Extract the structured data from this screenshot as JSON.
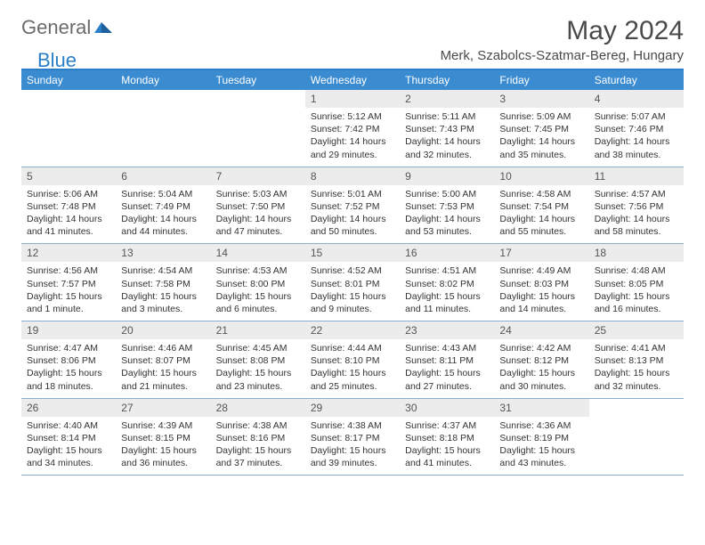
{
  "logo": {
    "text1": "General",
    "text2": "Blue"
  },
  "title": "May 2024",
  "location": "Merk, Szabolcs-Szatmar-Bereg, Hungary",
  "colors": {
    "header_bar": "#3a8bd0",
    "border_top": "#2a7fc9",
    "week_border": "#8aaed0",
    "daynum_bg": "#ececec",
    "text": "#333333",
    "title_text": "#4a4a4a"
  },
  "day_names": [
    "Sunday",
    "Monday",
    "Tuesday",
    "Wednesday",
    "Thursday",
    "Friday",
    "Saturday"
  ],
  "weeks": [
    [
      null,
      null,
      null,
      {
        "n": "1",
        "sunrise": "5:12 AM",
        "sunset": "7:42 PM",
        "daylight": "14 hours and 29 minutes."
      },
      {
        "n": "2",
        "sunrise": "5:11 AM",
        "sunset": "7:43 PM",
        "daylight": "14 hours and 32 minutes."
      },
      {
        "n": "3",
        "sunrise": "5:09 AM",
        "sunset": "7:45 PM",
        "daylight": "14 hours and 35 minutes."
      },
      {
        "n": "4",
        "sunrise": "5:07 AM",
        "sunset": "7:46 PM",
        "daylight": "14 hours and 38 minutes."
      }
    ],
    [
      {
        "n": "5",
        "sunrise": "5:06 AM",
        "sunset": "7:48 PM",
        "daylight": "14 hours and 41 minutes."
      },
      {
        "n": "6",
        "sunrise": "5:04 AM",
        "sunset": "7:49 PM",
        "daylight": "14 hours and 44 minutes."
      },
      {
        "n": "7",
        "sunrise": "5:03 AM",
        "sunset": "7:50 PM",
        "daylight": "14 hours and 47 minutes."
      },
      {
        "n": "8",
        "sunrise": "5:01 AM",
        "sunset": "7:52 PM",
        "daylight": "14 hours and 50 minutes."
      },
      {
        "n": "9",
        "sunrise": "5:00 AM",
        "sunset": "7:53 PM",
        "daylight": "14 hours and 53 minutes."
      },
      {
        "n": "10",
        "sunrise": "4:58 AM",
        "sunset": "7:54 PM",
        "daylight": "14 hours and 55 minutes."
      },
      {
        "n": "11",
        "sunrise": "4:57 AM",
        "sunset": "7:56 PM",
        "daylight": "14 hours and 58 minutes."
      }
    ],
    [
      {
        "n": "12",
        "sunrise": "4:56 AM",
        "sunset": "7:57 PM",
        "daylight": "15 hours and 1 minute."
      },
      {
        "n": "13",
        "sunrise": "4:54 AM",
        "sunset": "7:58 PM",
        "daylight": "15 hours and 3 minutes."
      },
      {
        "n": "14",
        "sunrise": "4:53 AM",
        "sunset": "8:00 PM",
        "daylight": "15 hours and 6 minutes."
      },
      {
        "n": "15",
        "sunrise": "4:52 AM",
        "sunset": "8:01 PM",
        "daylight": "15 hours and 9 minutes."
      },
      {
        "n": "16",
        "sunrise": "4:51 AM",
        "sunset": "8:02 PM",
        "daylight": "15 hours and 11 minutes."
      },
      {
        "n": "17",
        "sunrise": "4:49 AM",
        "sunset": "8:03 PM",
        "daylight": "15 hours and 14 minutes."
      },
      {
        "n": "18",
        "sunrise": "4:48 AM",
        "sunset": "8:05 PM",
        "daylight": "15 hours and 16 minutes."
      }
    ],
    [
      {
        "n": "19",
        "sunrise": "4:47 AM",
        "sunset": "8:06 PM",
        "daylight": "15 hours and 18 minutes."
      },
      {
        "n": "20",
        "sunrise": "4:46 AM",
        "sunset": "8:07 PM",
        "daylight": "15 hours and 21 minutes."
      },
      {
        "n": "21",
        "sunrise": "4:45 AM",
        "sunset": "8:08 PM",
        "daylight": "15 hours and 23 minutes."
      },
      {
        "n": "22",
        "sunrise": "4:44 AM",
        "sunset": "8:10 PM",
        "daylight": "15 hours and 25 minutes."
      },
      {
        "n": "23",
        "sunrise": "4:43 AM",
        "sunset": "8:11 PM",
        "daylight": "15 hours and 27 minutes."
      },
      {
        "n": "24",
        "sunrise": "4:42 AM",
        "sunset": "8:12 PM",
        "daylight": "15 hours and 30 minutes."
      },
      {
        "n": "25",
        "sunrise": "4:41 AM",
        "sunset": "8:13 PM",
        "daylight": "15 hours and 32 minutes."
      }
    ],
    [
      {
        "n": "26",
        "sunrise": "4:40 AM",
        "sunset": "8:14 PM",
        "daylight": "15 hours and 34 minutes."
      },
      {
        "n": "27",
        "sunrise": "4:39 AM",
        "sunset": "8:15 PM",
        "daylight": "15 hours and 36 minutes."
      },
      {
        "n": "28",
        "sunrise": "4:38 AM",
        "sunset": "8:16 PM",
        "daylight": "15 hours and 37 minutes."
      },
      {
        "n": "29",
        "sunrise": "4:38 AM",
        "sunset": "8:17 PM",
        "daylight": "15 hours and 39 minutes."
      },
      {
        "n": "30",
        "sunrise": "4:37 AM",
        "sunset": "8:18 PM",
        "daylight": "15 hours and 41 minutes."
      },
      {
        "n": "31",
        "sunrise": "4:36 AM",
        "sunset": "8:19 PM",
        "daylight": "15 hours and 43 minutes."
      },
      null
    ]
  ],
  "labels": {
    "sunrise": "Sunrise:",
    "sunset": "Sunset:",
    "daylight": "Daylight:"
  }
}
